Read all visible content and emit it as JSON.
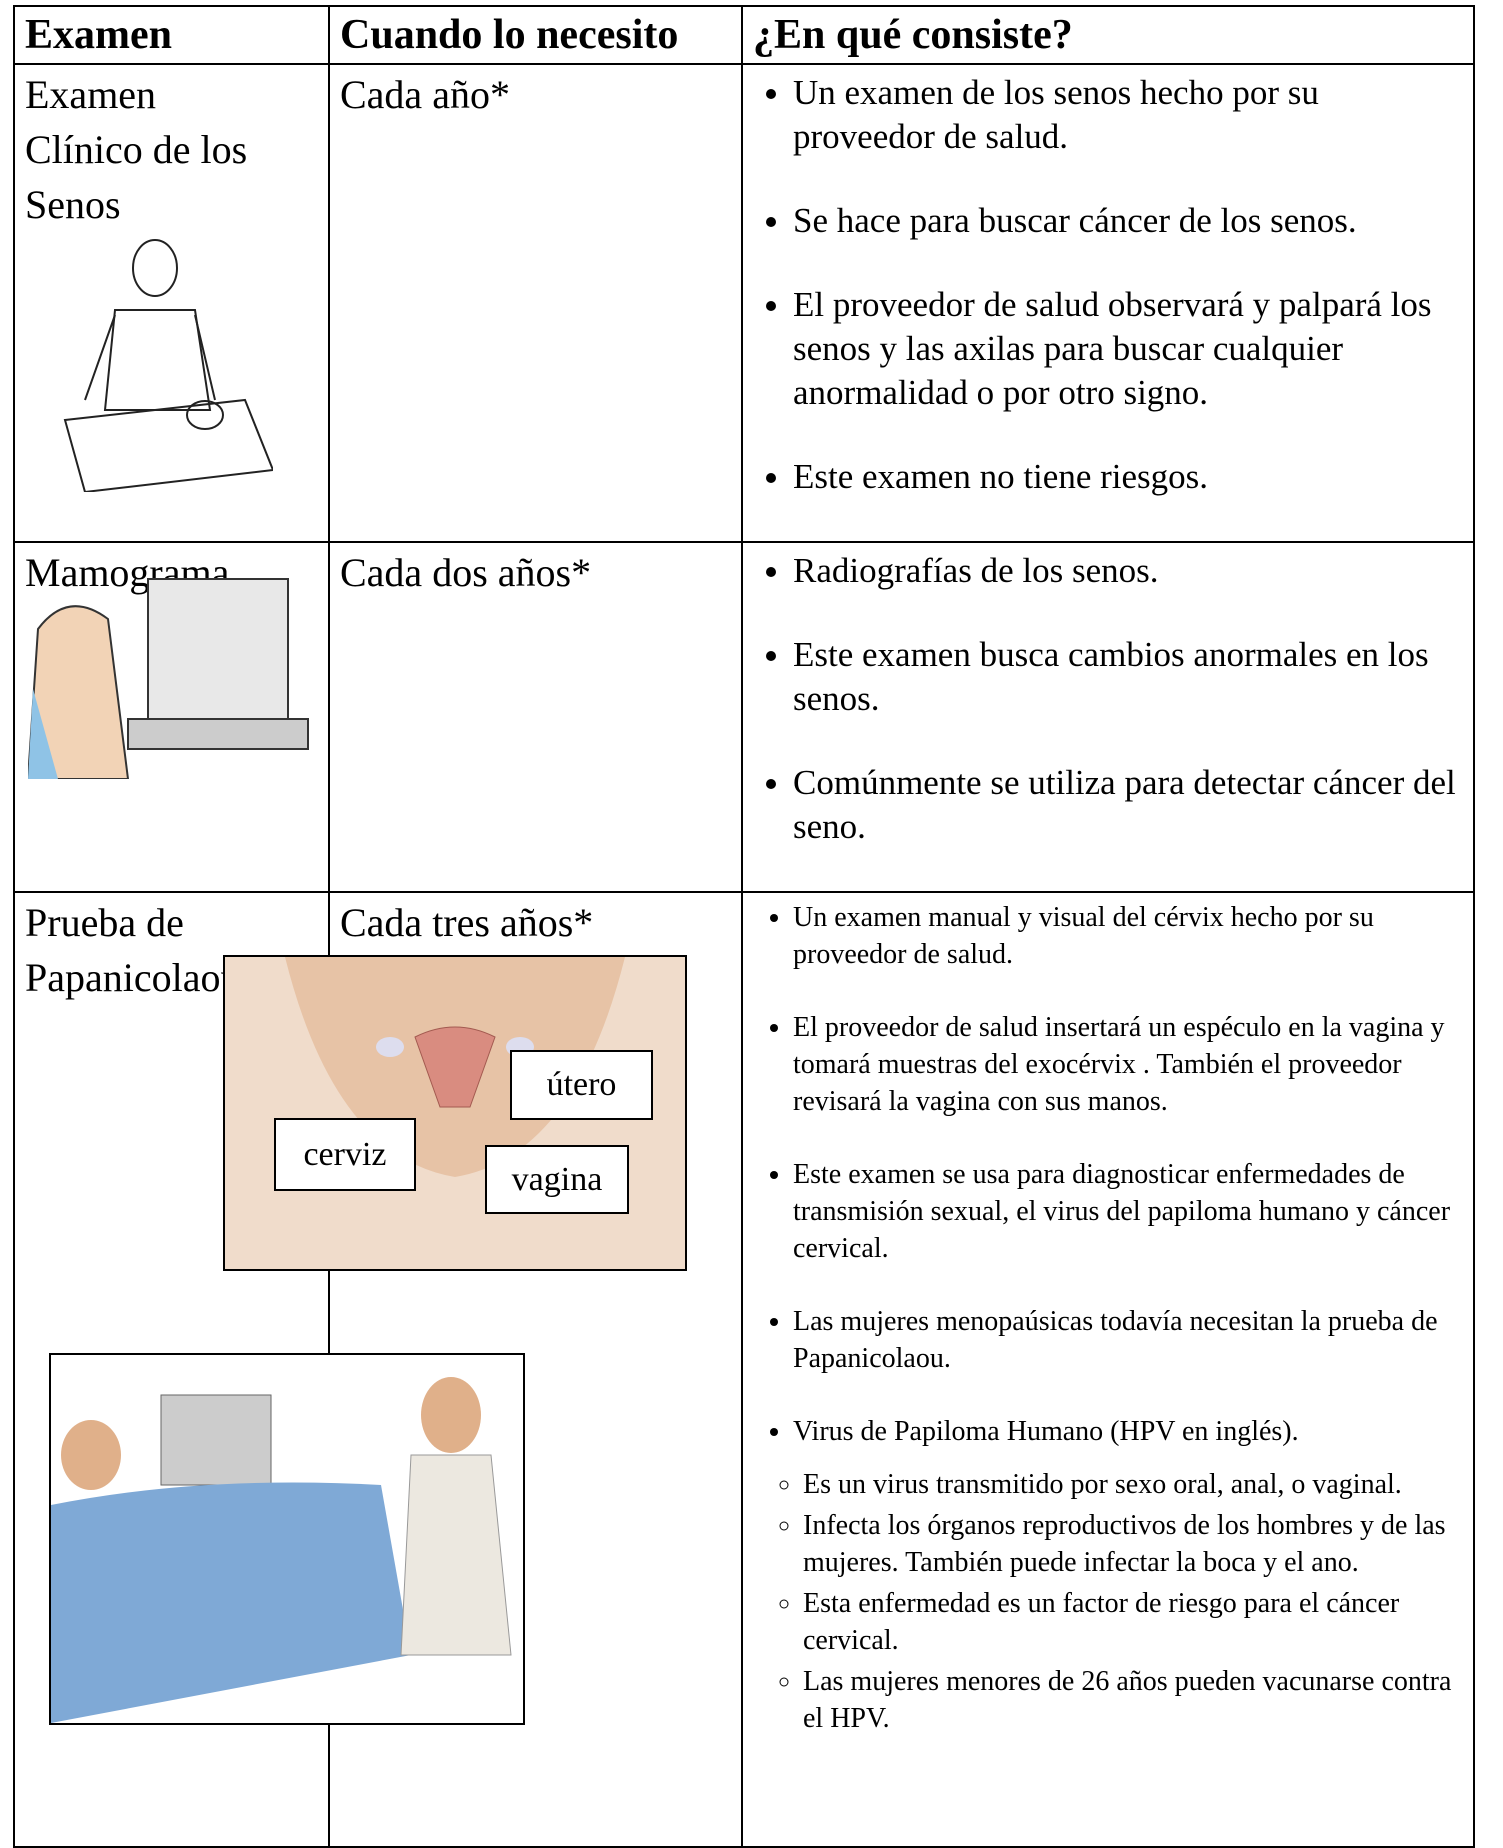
{
  "table": {
    "header": [
      "Examen",
      "Cuando lo necesito",
      "¿En qué consiste?"
    ],
    "rows": [
      {
        "exam": [
          "Examen",
          "Clínico de los",
          "Senos"
        ],
        "frequency": "Cada año*",
        "bullets": [
          "Un examen de los senos hecho por su proveedor de salud.",
          "Se hace para buscar cáncer de los senos.",
          "El proveedor de salud observará y palpará los senos y las axilas para buscar cualquier anormalidad o por otro signo.",
          "Este examen no tiene riesgos."
        ]
      },
      {
        "exam": [
          "Mamograma"
        ],
        "frequency": "Cada dos años*",
        "bullets": [
          "Radiografías de los senos.",
          "Este examen busca cambios anormales en los senos.",
          "Comúnmente se utiliza para detectar cáncer del seno."
        ]
      },
      {
        "exam": [
          "Prueba de",
          "Papanicolaou"
        ],
        "frequency": "Cada tres años*",
        "bullets": [
          "Un examen manual y visual del cérvix hecho por su proveedor de salud.",
          "El proveedor de salud insertará un espéculo en la vagina y tomará muestras del exocérvix . También el proveedor revisará la vagina con sus manos.",
          "Este examen se usa para diagnosticar enfermedades de transmisión sexual, el virus del papiloma humano y cáncer cervical.",
          "Las mujeres menopaúsicas todavía necesitan la prueba de Papanicolaou.",
          "Virus de Papiloma Humano (HPV en inglés)."
        ],
        "subbullets": [
          "Es un virus transmitido por sexo oral, anal, o vaginal.",
          "Infecta los órganos reproductivos de los hombres y de las mujeres. También puede infectar la boca y el ano.",
          "Esta enfermedad es un factor de riesgo para el cáncer cervical.",
          "Las mujeres menores de 26 años pueden vacunarse contra el HPV."
        ]
      }
    ],
    "diagram_labels": [
      "útero",
      "cerviz",
      "vagina"
    ]
  }
}
